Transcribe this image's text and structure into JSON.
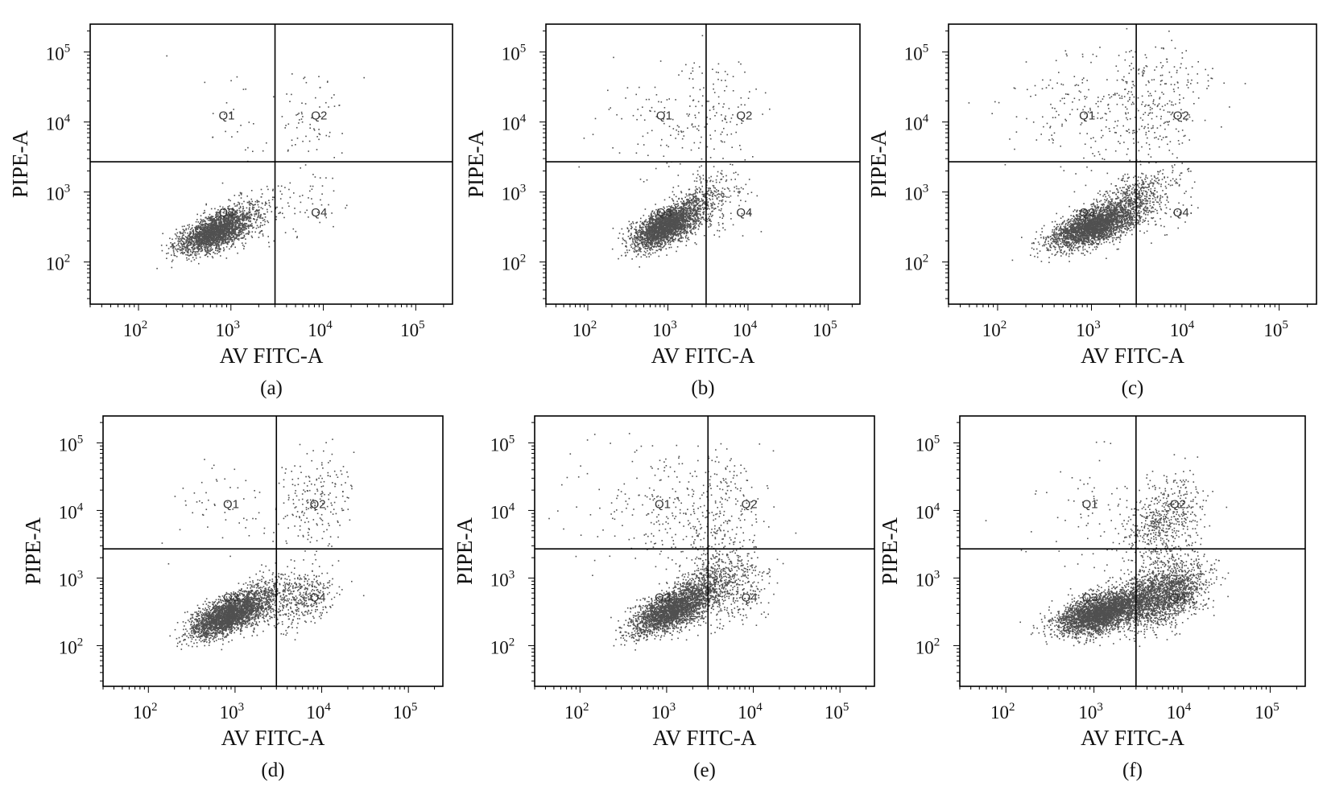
{
  "figure": {
    "colors": {
      "background": "#ffffff",
      "frame": "#000000",
      "gate": "#000000",
      "dots": "#505050",
      "text": "#111111"
    }
  },
  "chart_data": [
    {
      "type": "scatter",
      "panel_label": "(a)",
      "xlabel": "AV FITC-A",
      "ylabel": "PIPE-A",
      "x_scale": "log",
      "y_scale": "log",
      "xlim": [
        30,
        250000
      ],
      "ylim": [
        25,
        250000
      ],
      "x_ticks": [
        100,
        1000,
        10000,
        100000
      ],
      "y_ticks": [
        100,
        1000,
        10000,
        100000
      ],
      "tick_labels": {
        "base": "10",
        "exponents": [
          "2",
          "3",
          "4",
          "5"
        ]
      },
      "gates": {
        "x": 3000,
        "y": 2700
      },
      "quadrant_labels": [
        "Q1",
        "Q2",
        "Q3",
        "Q4"
      ],
      "grid": false,
      "populations": [
        {
          "region": "Q3",
          "count": 2200,
          "center": [
            650,
            270
          ],
          "spread": [
            0.19,
            0.15
          ],
          "corr": 0.6
        },
        {
          "region": "Q3 tail",
          "count": 350,
          "center": [
            1300,
            420
          ],
          "spread": [
            0.22,
            0.2
          ],
          "corr": 0.5
        },
        {
          "region": "Q4",
          "count": 45,
          "center": [
            7000,
            700
          ],
          "spread": [
            0.22,
            0.25
          ],
          "corr": 0.2
        },
        {
          "region": "Q2",
          "count": 70,
          "center": [
            7000,
            12000
          ],
          "spread": [
            0.2,
            0.35
          ],
          "corr": 0.2
        },
        {
          "region": "Q1",
          "count": 25,
          "center": [
            900,
            15000
          ],
          "spread": [
            0.4,
            0.35
          ],
          "corr": 0
        }
      ]
    },
    {
      "type": "scatter",
      "panel_label": "(b)",
      "xlabel": "AV FITC-A",
      "ylabel": "PIPE-A",
      "x_scale": "log",
      "y_scale": "log",
      "xlim": [
        30,
        250000
      ],
      "ylim": [
        25,
        250000
      ],
      "x_ticks": [
        100,
        1000,
        10000,
        100000
      ],
      "y_ticks": [
        100,
        1000,
        10000,
        100000
      ],
      "tick_labels": {
        "base": "10",
        "exponents": [
          "2",
          "3",
          "4",
          "5"
        ]
      },
      "gates": {
        "x": 3000,
        "y": 2700
      },
      "quadrant_labels": [
        "Q1",
        "Q2",
        "Q3",
        "Q4"
      ],
      "grid": false,
      "populations": [
        {
          "region": "Q3",
          "count": 2400,
          "center": [
            900,
            320
          ],
          "spread": [
            0.2,
            0.15
          ],
          "corr": 0.6
        },
        {
          "region": "Q3 tail",
          "count": 500,
          "center": [
            2000,
            600
          ],
          "spread": [
            0.2,
            0.22
          ],
          "corr": 0.6
        },
        {
          "region": "Q4",
          "count": 80,
          "center": [
            5000,
            700
          ],
          "spread": [
            0.18,
            0.25
          ],
          "corr": 0.3
        },
        {
          "region": "Q2",
          "count": 120,
          "center": [
            3500,
            12000
          ],
          "spread": [
            0.3,
            0.4
          ],
          "corr": 0.2
        },
        {
          "region": "Q1",
          "count": 90,
          "center": [
            900,
            10000
          ],
          "spread": [
            0.4,
            0.45
          ],
          "corr": 0
        }
      ]
    },
    {
      "type": "scatter",
      "panel_label": "(c)",
      "xlabel": "AV FITC-A",
      "ylabel": "PIPE-A",
      "x_scale": "log",
      "y_scale": "log",
      "xlim": [
        30,
        250000
      ],
      "ylim": [
        25,
        250000
      ],
      "x_ticks": [
        100,
        1000,
        10000,
        100000
      ],
      "y_ticks": [
        100,
        1000,
        10000,
        100000
      ],
      "tick_labels": {
        "base": "10",
        "exponents": [
          "2",
          "3",
          "4",
          "5"
        ]
      },
      "gates": {
        "x": 3000,
        "y": 2700
      },
      "quadrant_labels": [
        "Q1",
        "Q2",
        "Q3",
        "Q4"
      ],
      "grid": false,
      "populations": [
        {
          "region": "Q3",
          "count": 2600,
          "center": [
            1000,
            320
          ],
          "spread": [
            0.22,
            0.15
          ],
          "corr": 0.6
        },
        {
          "region": "Q3 tail",
          "count": 700,
          "center": [
            2200,
            650
          ],
          "spread": [
            0.22,
            0.22
          ],
          "corr": 0.6
        },
        {
          "region": "Q4",
          "count": 120,
          "center": [
            5000,
            800
          ],
          "spread": [
            0.2,
            0.25
          ],
          "corr": 0.3
        },
        {
          "region": "Q2",
          "count": 300,
          "center": [
            4000,
            20000
          ],
          "spread": [
            0.3,
            0.45
          ],
          "corr": 0.2
        },
        {
          "region": "Q1",
          "count": 160,
          "center": [
            900,
            15000
          ],
          "spread": [
            0.45,
            0.45
          ],
          "corr": 0
        }
      ]
    },
    {
      "type": "scatter",
      "panel_label": "(d)",
      "xlabel": "AV FITC-A",
      "ylabel": "PIPE-A",
      "x_scale": "log",
      "y_scale": "log",
      "xlim": [
        30,
        250000
      ],
      "ylim": [
        25,
        250000
      ],
      "x_ticks": [
        100,
        1000,
        10000,
        100000
      ],
      "y_ticks": [
        100,
        1000,
        10000,
        100000
      ],
      "tick_labels": {
        "base": "10",
        "exponents": [
          "2",
          "3",
          "4",
          "5"
        ]
      },
      "gates": {
        "x": 3000,
        "y": 2700
      },
      "quadrant_labels": [
        "Q1",
        "Q2",
        "Q3",
        "Q4"
      ],
      "grid": false,
      "populations": [
        {
          "region": "Q3",
          "count": 2500,
          "center": [
            800,
            280
          ],
          "spread": [
            0.2,
            0.15
          ],
          "corr": 0.6
        },
        {
          "region": "Q3 tail",
          "count": 600,
          "center": [
            1800,
            450
          ],
          "spread": [
            0.22,
            0.2
          ],
          "corr": 0.5
        },
        {
          "region": "Q4",
          "count": 350,
          "center": [
            6000,
            500
          ],
          "spread": [
            0.18,
            0.22
          ],
          "corr": 0.3
        },
        {
          "region": "Q2",
          "count": 200,
          "center": [
            8000,
            14000
          ],
          "spread": [
            0.2,
            0.35
          ],
          "corr": 0.2
        },
        {
          "region": "Q1",
          "count": 60,
          "center": [
            900,
            12000
          ],
          "spread": [
            0.4,
            0.4
          ],
          "corr": 0
        }
      ]
    },
    {
      "type": "scatter",
      "panel_label": "(e)",
      "xlabel": "AV FITC-A",
      "ylabel": "PIPE-A",
      "x_scale": "log",
      "y_scale": "log",
      "xlim": [
        30,
        250000
      ],
      "ylim": [
        25,
        250000
      ],
      "x_ticks": [
        100,
        1000,
        10000,
        100000
      ],
      "y_ticks": [
        100,
        1000,
        10000,
        100000
      ],
      "tick_labels": {
        "base": "10",
        "exponents": [
          "2",
          "3",
          "4",
          "5"
        ]
      },
      "gates": {
        "x": 3000,
        "y": 2700
      },
      "quadrant_labels": [
        "Q1",
        "Q2",
        "Q3",
        "Q4"
      ],
      "grid": false,
      "populations": [
        {
          "region": "Q3",
          "count": 2300,
          "center": [
            1100,
            330
          ],
          "spread": [
            0.22,
            0.17
          ],
          "corr": 0.6
        },
        {
          "region": "Q3 tail",
          "count": 800,
          "center": [
            2500,
            700
          ],
          "spread": [
            0.22,
            0.25
          ],
          "corr": 0.6
        },
        {
          "region": "Q4",
          "count": 250,
          "center": [
            6000,
            600
          ],
          "spread": [
            0.2,
            0.25
          ],
          "corr": 0.3
        },
        {
          "region": "Q2",
          "count": 250,
          "center": [
            3500,
            8000
          ],
          "spread": [
            0.3,
            0.45
          ],
          "corr": 0.2
        },
        {
          "region": "Q1",
          "count": 200,
          "center": [
            1000,
            12000
          ],
          "spread": [
            0.5,
            0.45
          ],
          "corr": 0
        }
      ]
    },
    {
      "type": "scatter",
      "panel_label": "(f)",
      "xlabel": "AV FITC-A",
      "ylabel": "PIPE-A",
      "x_scale": "log",
      "y_scale": "log",
      "xlim": [
        30,
        250000
      ],
      "ylim": [
        25,
        250000
      ],
      "x_ticks": [
        100,
        1000,
        10000,
        100000
      ],
      "y_ticks": [
        100,
        1000,
        10000,
        100000
      ],
      "tick_labels": {
        "base": "10",
        "exponents": [
          "2",
          "3",
          "4",
          "5"
        ]
      },
      "gates": {
        "x": 3000,
        "y": 2700
      },
      "quadrant_labels": [
        "Q1",
        "Q2",
        "Q3",
        "Q4"
      ],
      "grid": false,
      "populations": [
        {
          "region": "Q3",
          "count": 2800,
          "center": [
            1100,
            300
          ],
          "spread": [
            0.23,
            0.15
          ],
          "corr": 0.5
        },
        {
          "region": "Q3/Q4 tail",
          "count": 1500,
          "center": [
            3500,
            500
          ],
          "spread": [
            0.28,
            0.22
          ],
          "corr": 0.5
        },
        {
          "region": "Q4",
          "count": 900,
          "center": [
            8000,
            600
          ],
          "spread": [
            0.2,
            0.25
          ],
          "corr": 0.4
        },
        {
          "region": "Q2",
          "count": 600,
          "center": [
            6000,
            6000
          ],
          "spread": [
            0.22,
            0.35
          ],
          "corr": 0.3
        },
        {
          "region": "Q1",
          "count": 80,
          "center": [
            1000,
            8000
          ],
          "spread": [
            0.45,
            0.4
          ],
          "corr": 0
        }
      ]
    }
  ]
}
